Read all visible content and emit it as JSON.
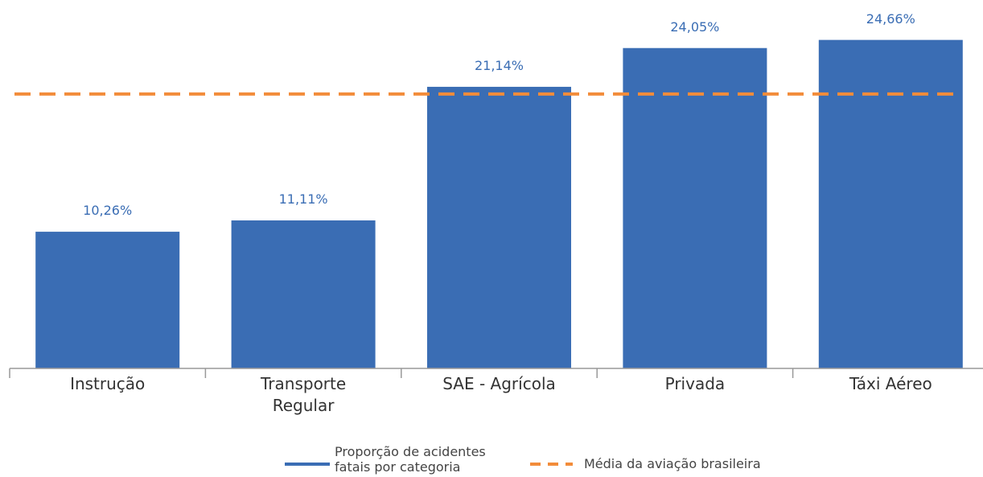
{
  "chart_data": {
    "type": "bar",
    "categories": [
      "Instrução",
      "Transporte Regular",
      "SAE - Agrícola",
      "Privada",
      "Táxi Aéreo"
    ],
    "series": [
      {
        "name": "Proporção de acidentes fatais por categoria",
        "color": "#3a6db4",
        "values": [
          10.26,
          11.11,
          21.14,
          24.05,
          24.66
        ],
        "value_labels": [
          "10,26%",
          "11,11%",
          "21,14%",
          "24,05%",
          "24,66%"
        ]
      }
    ],
    "reference_line": {
      "name": "Média da aviação brasileira",
      "value": 20.6,
      "color": "#f28c3a"
    },
    "ylim": [
      0,
      25
    ]
  }
}
